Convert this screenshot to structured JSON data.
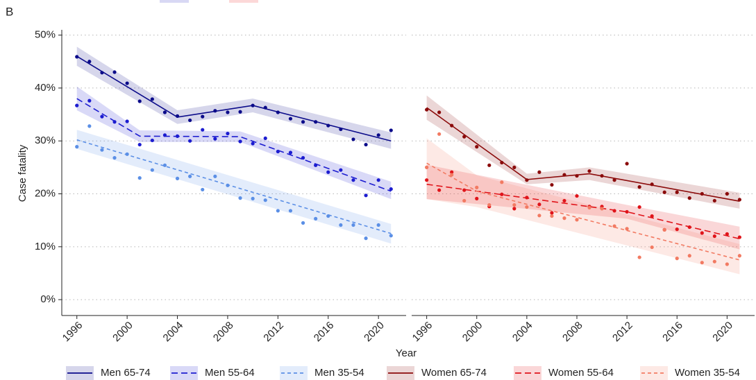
{
  "panel_label": "B",
  "chart_data": {
    "type": "line",
    "x_label": "Year",
    "y_label": "Case fatality",
    "x": [
      1996,
      1997,
      1998,
      1999,
      2000,
      2001,
      2002,
      2003,
      2004,
      2005,
      2006,
      2007,
      2008,
      2009,
      2010,
      2011,
      2012,
      2013,
      2014,
      2015,
      2016,
      2017,
      2018,
      2019,
      2020,
      2021
    ],
    "xlim": [
      1994.8,
      2022.2
    ],
    "xticks": [
      1996,
      2000,
      2004,
      2008,
      2012,
      2016,
      2020
    ],
    "ylim": [
      -3,
      51
    ],
    "yticks": [
      {
        "value": 0,
        "label": "0%"
      },
      {
        "value": 10,
        "label": "10%"
      },
      {
        "value": 20,
        "label": "20%"
      },
      {
        "value": 30,
        "label": "30%"
      },
      {
        "value": 40,
        "label": "40%"
      },
      {
        "value": 50,
        "label": "50%"
      }
    ],
    "grid": true,
    "legend": "bottom",
    "series": [
      {
        "name": "Men 65-74",
        "panel": 0,
        "color": "#0b0b8a",
        "dash": "solid",
        "values": [
          45.9,
          45.0,
          42.9,
          43.0,
          40.9,
          37.5,
          37.9,
          35.4,
          34.7,
          33.9,
          34.6,
          35.7,
          35.4,
          35.5,
          36.7,
          36.3,
          35.4,
          34.2,
          33.6,
          33.6,
          32.9,
          32.2,
          30.3,
          29.3,
          31.1,
          32.0
        ],
        "fit_x": [
          1996,
          2004,
          2010,
          2021
        ],
        "fit": [
          46.0,
          34.5,
          36.7,
          30.0
        ],
        "band_lower": [
          44.2,
          33.2,
          35.4,
          28.5
        ],
        "band_upper": [
          47.8,
          35.8,
          38.0,
          31.6
        ]
      },
      {
        "name": "Men 55-64",
        "panel": 0,
        "color": "#1c1cd0",
        "dash": "long",
        "values": [
          36.7,
          37.6,
          34.6,
          33.6,
          33.7,
          29.3,
          30.1,
          31.1,
          30.9,
          30.0,
          32.1,
          30.4,
          31.4,
          29.9,
          29.5,
          30.5,
          28.0,
          27.8,
          26.8,
          25.4,
          24.1,
          24.5,
          22.6,
          19.7,
          22.6,
          20.9
        ],
        "fit_x": [
          1996,
          2001,
          2009,
          2021
        ],
        "fit": [
          38.0,
          30.9,
          30.8,
          20.5
        ],
        "band_lower": [
          35.8,
          29.8,
          29.8,
          19.0
        ],
        "band_upper": [
          40.3,
          32.0,
          31.8,
          22.3
        ]
      },
      {
        "name": "Men 35-54",
        "panel": 0,
        "color": "#5b8fe6",
        "dash": "short",
        "values": [
          28.9,
          32.8,
          28.3,
          26.8,
          27.5,
          23.0,
          24.5,
          25.4,
          22.9,
          23.3,
          20.8,
          23.3,
          21.6,
          19.2,
          19.1,
          18.8,
          16.8,
          16.8,
          14.5,
          15.3,
          15.8,
          14.1,
          14.1,
          11.6,
          14.1,
          12.1
        ],
        "fit_x": [
          1996,
          2021
        ],
        "fit": [
          30.2,
          12.5
        ],
        "band_lower": [
          28.5,
          10.6
        ],
        "band_upper": [
          32.1,
          14.3
        ]
      },
      {
        "name": "Women 65-74",
        "panel": 1,
        "color": "#8b0a0a",
        "dash": "solid",
        "values": [
          35.9,
          35.4,
          32.9,
          30.8,
          28.9,
          25.4,
          25.9,
          25.0,
          22.6,
          24.1,
          21.7,
          23.6,
          23.4,
          24.3,
          23.4,
          22.6,
          25.7,
          21.3,
          21.8,
          20.3,
          20.3,
          19.2,
          20.0,
          18.7,
          20.0,
          18.9
        ],
        "fit_x": [
          1996,
          2004,
          2009,
          2021
        ],
        "fit": [
          36.3,
          22.7,
          23.8,
          18.6
        ],
        "band_lower": [
          34.0,
          21.8,
          22.6,
          17.2
        ],
        "band_upper": [
          38.6,
          23.8,
          25.0,
          20.2
        ]
      },
      {
        "name": "Women 55-64",
        "panel": 1,
        "color": "#e0141a",
        "dash": "long",
        "values": [
          22.6,
          20.7,
          24.1,
          20.7,
          19.1,
          17.6,
          19.9,
          17.2,
          19.3,
          18.0,
          16.4,
          18.7,
          19.6,
          17.6,
          17.6,
          16.8,
          16.6,
          17.5,
          15.8,
          13.2,
          13.3,
          13.7,
          12.6,
          12.0,
          12.4,
          11.8
        ],
        "fit_x": [
          1996,
          2012,
          2021
        ],
        "fit": [
          21.8,
          16.6,
          11.5
        ],
        "band_lower": [
          19.0,
          15.3,
          9.5
        ],
        "band_upper": [
          25.5,
          17.9,
          13.8
        ]
      },
      {
        "name": "Women 35-54",
        "panel": 1,
        "color": "#f27a62",
        "dash": "short",
        "values": [
          25.0,
          31.3,
          23.6,
          18.7,
          21.2,
          17.9,
          22.2,
          17.9,
          17.5,
          15.9,
          15.8,
          15.4,
          15.1,
          17.4,
          17.2,
          13.9,
          13.4,
          8.0,
          9.9,
          13.2,
          7.8,
          8.3,
          7.0,
          7.2,
          6.7,
          8.3
        ],
        "fit_x": [
          1996,
          2000,
          2021
        ],
        "fit": [
          25.8,
          20.5,
          7.5
        ],
        "band_lower": [
          19.0,
          17.5,
          4.8
        ],
        "band_upper": [
          30.5,
          23.5,
          10.5
        ]
      }
    ]
  }
}
